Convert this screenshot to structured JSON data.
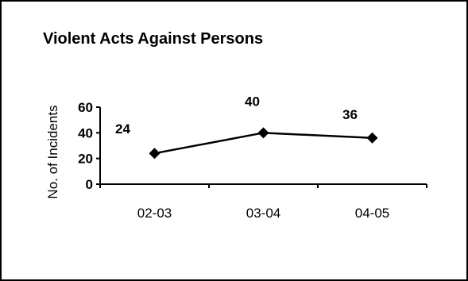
{
  "chart_data": {
    "type": "line",
    "title": "Violent Acts Against Persons",
    "xlabel": "",
    "ylabel": "No. of Incidents",
    "categories": [
      "02-03",
      "03-04",
      "04-05"
    ],
    "values": [
      24,
      40,
      36
    ],
    "data_labels": [
      "24",
      "40",
      "36"
    ],
    "yticks": [
      "0",
      "20",
      "40",
      "60"
    ],
    "ylim": [
      0,
      60
    ],
    "grid": false,
    "legend": "none",
    "colors": {
      "line": "#000000",
      "marker": "#000000"
    }
  }
}
